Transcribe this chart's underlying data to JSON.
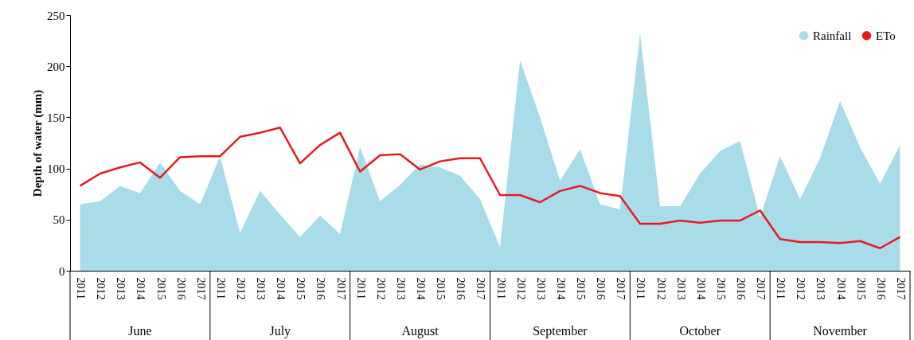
{
  "chart_data": {
    "type": "area",
    "ylabel": "Depth of water (mm)",
    "categories": [
      "2011",
      "2012",
      "2013",
      "2014",
      "2015",
      "2016",
      "2017",
      "2011",
      "2012",
      "2013",
      "2014",
      "2015",
      "2016",
      "2017",
      "2011",
      "2012",
      "2013",
      "2014",
      "2015",
      "2016",
      "2017",
      "2011",
      "2012",
      "2013",
      "2014",
      "2015",
      "2016",
      "2017",
      "2011",
      "2012",
      "2013",
      "2014",
      "2015",
      "2016",
      "2017",
      "2011",
      "2012",
      "2013",
      "2014",
      "2015",
      "2016",
      "2017"
    ],
    "annotations": [
      "June",
      "July",
      "August",
      "September",
      "October",
      "November"
    ],
    "series": [
      {
        "name": "Rainfall",
        "color": "#a8dce8",
        "values": [
          65,
          68,
          83,
          76,
          106,
          78,
          65,
          112,
          37,
          78,
          55,
          33,
          54,
          36,
          121,
          68,
          84,
          104,
          101,
          93,
          70,
          23,
          206,
          150,
          88,
          119,
          65,
          60,
          232,
          63,
          63,
          95,
          117,
          127,
          52,
          112,
          70,
          110,
          166,
          121,
          85,
          123
        ]
      },
      {
        "name": "ETo",
        "type": "line",
        "color": "#e8191e",
        "values": [
          83,
          95,
          101,
          106,
          91,
          111,
          112,
          112,
          131,
          135,
          140,
          105,
          123,
          135,
          97,
          113,
          114,
          99,
          107,
          110,
          110,
          74,
          74,
          67,
          78,
          83,
          76,
          73,
          46,
          46,
          49,
          47,
          49,
          49,
          59,
          31,
          28,
          28,
          27,
          29,
          22,
          33
        ]
      }
    ],
    "ylim": [
      0,
      250
    ],
    "yticks": [
      0,
      50,
      100,
      150,
      200,
      250
    ],
    "grid": false,
    "legend": "top right"
  }
}
